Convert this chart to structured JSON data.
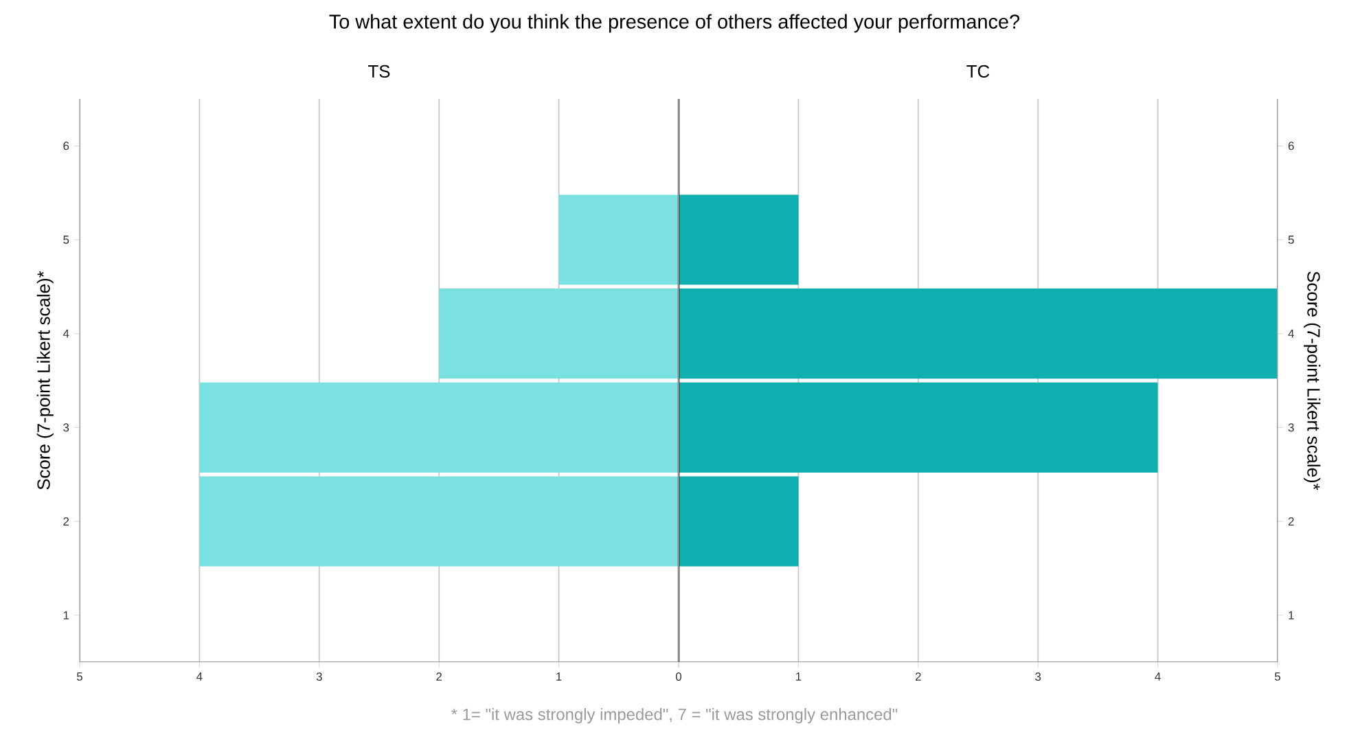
{
  "chart_data": [
    {
      "type": "bar",
      "orientation": "horizontal",
      "title": "To what extent do you think the presence of others affected your performance?",
      "subtitle": "TS",
      "ylabel": "Score (7-point Likert scale)*",
      "categories": [
        "6",
        "5",
        "4",
        "3",
        "2",
        "1"
      ],
      "values": [
        null,
        1,
        2,
        4,
        4,
        null
      ],
      "color": "#7ae0e0",
      "xlim": [
        5,
        0
      ],
      "xticks": [
        5,
        4,
        3,
        2,
        1,
        {
          "value": 0,
          "label": null
        }
      ],
      "grid": "x"
    },
    {
      "type": "bar",
      "orientation": "horizontal",
      "subtitle": "TC",
      "y2label": "Score (7-point Likert scale)*",
      "categories": [
        "6",
        "5",
        "4",
        "3",
        "2",
        "1"
      ],
      "values": [
        null,
        1,
        5,
        4,
        1,
        null
      ],
      "color": "#0fafaf",
      "xlim": [
        0,
        5
      ],
      "xticks": [
        0,
        1,
        2,
        3,
        4,
        5
      ],
      "grid": "x",
      "annotations": [
        "* 1= \"it was strongly impeded\", 7 = \"it was strongly enhanced\""
      ]
    }
  ]
}
